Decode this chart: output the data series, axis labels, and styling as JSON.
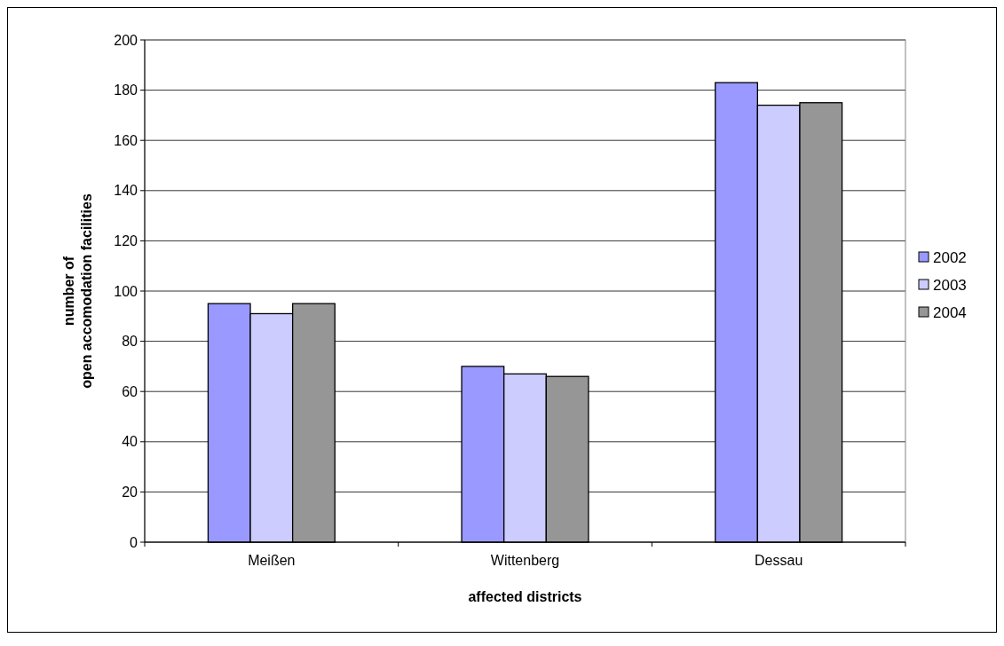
{
  "chart_data": {
    "type": "bar",
    "xlabel": "affected districts",
    "ylabel": "number of\nopen accomodation facilities",
    "categories": [
      "Meißen",
      "Wittenberg",
      "Dessau"
    ],
    "series": [
      {
        "name": "2002",
        "color": "#9999ff",
        "values": [
          95,
          70,
          183
        ]
      },
      {
        "name": "2003",
        "color": "#ccccff",
        "values": [
          91,
          67,
          174
        ]
      },
      {
        "name": "2004",
        "color": "#969696",
        "values": [
          95,
          66,
          175
        ]
      }
    ],
    "ylim": [
      0,
      200
    ],
    "yticks": [
      0,
      20,
      40,
      60,
      80,
      100,
      120,
      140,
      160,
      180,
      200
    ],
    "grid": "y",
    "legend": "right"
  }
}
